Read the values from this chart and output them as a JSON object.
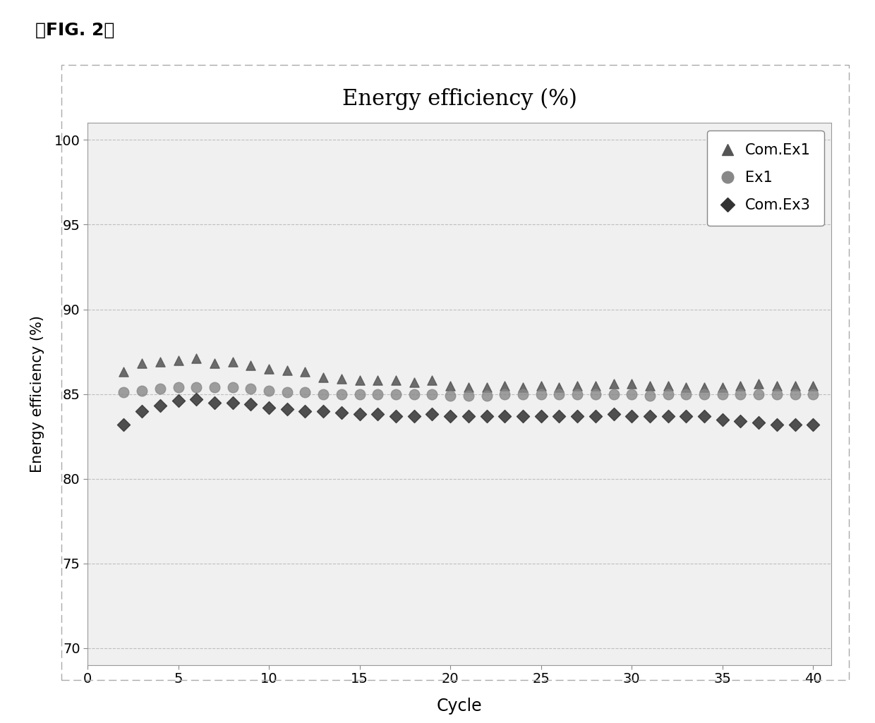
{
  "title": "Energy efficiency (%)",
  "xlabel": "Cycle",
  "ylabel": "Energy efficiency (%)",
  "fig_label": "』FIG. 2】",
  "xlim": [
    0,
    41
  ],
  "ylim": [
    69,
    101
  ],
  "yticks": [
    70,
    75,
    80,
    85,
    90,
    95,
    100
  ],
  "xticks": [
    0,
    5,
    10,
    15,
    20,
    25,
    30,
    35,
    40
  ],
  "grid_color": "#aaaaaa",
  "plot_bg_color": "#f0f0f0",
  "fig_bg_color": "#ffffff",
  "legend_labels": [
    "Com.Ex1",
    "Ex1",
    "Com.Ex3"
  ],
  "com_ex1_color": "#555555",
  "ex1_color": "#888888",
  "com_ex3_color": "#333333",
  "com_ex1_x": [
    2,
    3,
    4,
    5,
    6,
    7,
    8,
    9,
    10,
    11,
    12,
    13,
    14,
    15,
    16,
    17,
    18,
    19,
    20,
    21,
    22,
    23,
    24,
    25,
    26,
    27,
    28,
    29,
    30,
    31,
    32,
    33,
    34,
    35,
    36,
    37,
    38,
    39,
    40
  ],
  "com_ex1_y": [
    86.3,
    86.8,
    86.9,
    87.0,
    87.1,
    86.8,
    86.9,
    86.7,
    86.5,
    86.4,
    86.3,
    86.0,
    85.9,
    85.8,
    85.8,
    85.8,
    85.7,
    85.8,
    85.5,
    85.4,
    85.4,
    85.5,
    85.4,
    85.5,
    85.4,
    85.5,
    85.5,
    85.6,
    85.6,
    85.5,
    85.5,
    85.4,
    85.4,
    85.4,
    85.5,
    85.6,
    85.5,
    85.5,
    85.5
  ],
  "ex1_x": [
    2,
    3,
    4,
    5,
    6,
    7,
    8,
    9,
    10,
    11,
    12,
    13,
    14,
    15,
    16,
    17,
    18,
    19,
    20,
    21,
    22,
    23,
    24,
    25,
    26,
    27,
    28,
    29,
    30,
    31,
    32,
    33,
    34,
    35,
    36,
    37,
    38,
    39,
    40
  ],
  "ex1_y": [
    85.1,
    85.2,
    85.3,
    85.4,
    85.4,
    85.4,
    85.4,
    85.3,
    85.2,
    85.1,
    85.1,
    85.0,
    85.0,
    85.0,
    85.0,
    85.0,
    85.0,
    85.0,
    84.9,
    84.9,
    84.9,
    85.0,
    85.0,
    85.0,
    85.0,
    85.0,
    85.0,
    85.0,
    85.0,
    84.9,
    85.0,
    85.0,
    85.0,
    85.0,
    85.0,
    85.0,
    85.0,
    85.0,
    85.0
  ],
  "com_ex3_x": [
    2,
    3,
    4,
    5,
    6,
    7,
    8,
    9,
    10,
    11,
    12,
    13,
    14,
    15,
    16,
    17,
    18,
    19,
    20,
    21,
    22,
    23,
    24,
    25,
    26,
    27,
    28,
    29,
    30,
    31,
    32,
    33,
    34,
    35,
    36,
    37,
    38,
    39,
    40
  ],
  "com_ex3_y": [
    83.2,
    84.0,
    84.3,
    84.6,
    84.7,
    84.5,
    84.5,
    84.4,
    84.2,
    84.1,
    84.0,
    84.0,
    83.9,
    83.8,
    83.8,
    83.7,
    83.7,
    83.8,
    83.7,
    83.7,
    83.7,
    83.7,
    83.7,
    83.7,
    83.7,
    83.7,
    83.7,
    83.8,
    83.7,
    83.7,
    83.7,
    83.7,
    83.7,
    83.5,
    83.4,
    83.3,
    83.2,
    83.2,
    83.2
  ],
  "title_fontsize": 22,
  "axis_label_fontsize": 15,
  "tick_fontsize": 14,
  "legend_fontsize": 15,
  "fig_label_fontsize": 18
}
